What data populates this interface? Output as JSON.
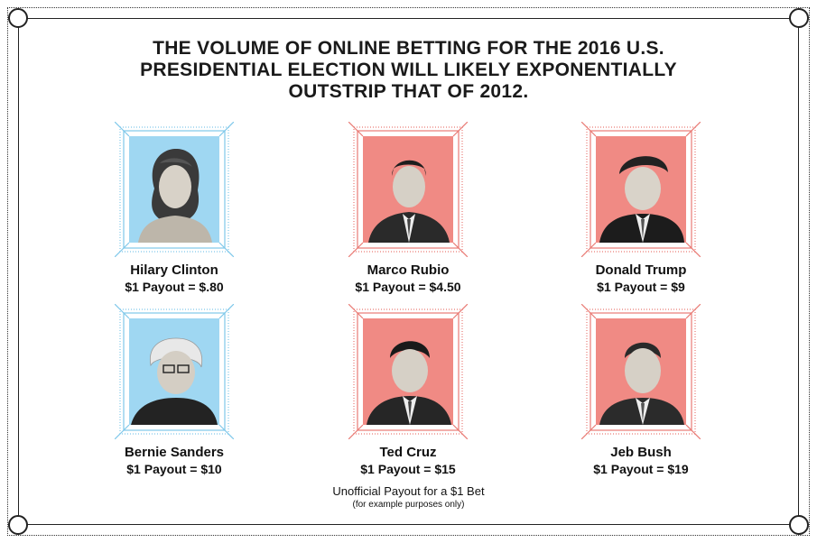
{
  "headline": {
    "line1": "THE VOLUME OF ONLINE BETTING FOR THE 2016 U.S.",
    "line2": "PRESIDENTIAL ELECTION WILL LIKELY EXPONENTIALLY",
    "line3": "OUTSTRIP THAT OF 2012."
  },
  "candidates": [
    {
      "name": "Hilary Clinton",
      "payout": "$1 Payout = $.80",
      "party_color": "#9fd7f2"
    },
    {
      "name": "Marco Rubio",
      "payout": "$1 Payout = $4.50",
      "party_color": "#f08a84"
    },
    {
      "name": "Donald Trump",
      "payout": "$1 Payout = $9",
      "party_color": "#f08a84"
    },
    {
      "name": "Bernie Sanders",
      "payout": "$1 Payout = $10",
      "party_color": "#9fd7f2"
    },
    {
      "name": "Ted Cruz",
      "payout": "$1 Payout = $15",
      "party_color": "#f08a84"
    },
    {
      "name": "Jeb Bush",
      "payout": "$1 Payout = $19",
      "party_color": "#f08a84"
    }
  ],
  "footnote": {
    "line1": "Unofficial Payout for a $1 Bet",
    "line2": "(for example purposes only)"
  }
}
